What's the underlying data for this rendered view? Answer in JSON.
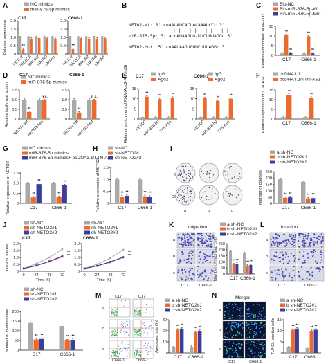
{
  "colors": {
    "gray": "#a9a9a9",
    "orange": "#ec6a2b",
    "blue": "#3a3f9a",
    "purple": "#7b6bbd",
    "micro_bg": "#d9dbea",
    "tunel_bg": "#0a1430",
    "flow_line": "#b33"
  },
  "panels": [
    {
      "id": "A",
      "letter": "A",
      "cell_labels": [
        "C17",
        "C666-1"
      ],
      "ylabel": "Relative expression",
      "legend": [
        "NC mimics",
        "miR-876-5p mimics"
      ],
      "subplots": [
        {
          "ylim": [
            0,
            2.0
          ],
          "yticks": [
            "0",
            "0.5",
            "1.0",
            "1.5",
            "2.0"
          ],
          "categories": [
            "NETO2",
            "HIGD2A",
            "ERLIN2",
            "MATR3",
            "LMAN1"
          ],
          "series": [
            {
              "name": "NC mimics",
              "values": [
                1.0,
                1.0,
                1.0,
                1.0,
                1.0
              ]
            },
            {
              "name": "miR-876-5p mimics",
              "values": [
                0.28,
                0.92,
                0.96,
                0.94,
                0.9
              ]
            }
          ],
          "stars": [
            "**",
            "",
            "",
            "",
            ""
          ]
        },
        {
          "ylim": [
            0,
            2.0
          ],
          "yticks": [
            "0",
            "0.5",
            "1.0",
            "1.5",
            "2.0"
          ],
          "categories": [
            "NETO2",
            "HIGD2A",
            "ERLIN2",
            "MATR3",
            "LMAN1"
          ],
          "series": [
            {
              "name": "NC mimics",
              "values": [
                1.0,
                1.0,
                1.0,
                1.0,
                1.0
              ]
            },
            {
              "name": "miR-876-5p mimics",
              "values": [
                0.3,
                0.95,
                0.93,
                0.92,
                0.94
              ]
            }
          ],
          "stars": [
            "**",
            "",
            "",
            "",
            ""
          ]
        }
      ]
    },
    {
      "id": "B",
      "letter": "B",
      "seq_wt": "NETO2-Wt: 5' cuAAUAUCACUACAAAUCCc 3'",
      "bars": "| | | | | |   | | | | |",
      "seq_mir": "miR-876-5p: 3' accAUAAGUG-UUCUUUAGGu 5'",
      "seq_mut": "NETO2-Mut: 5' cuAAUAAGUGUUCUUUAGGc 3'"
    },
    {
      "id": "C",
      "letter": "C",
      "ylabel": "Relative enrichment of NETO2",
      "legend": [
        "Bio-NC",
        "Bio-miR-876-5p-Wt",
        "Bio-miR-876-5p-Mut"
      ],
      "categories": [
        "C17",
        "C666-1"
      ],
      "ylim": [
        0,
        15
      ],
      "yticks": [
        "0",
        "5",
        "10",
        "15"
      ],
      "series": [
        {
          "name": "Bio-NC",
          "values": [
            1.0,
            1.0
          ]
        },
        {
          "name": "Bio-miR-876-5p-Wt",
          "values": [
            10.5,
            9.8
          ]
        },
        {
          "name": "Bio-miR-876-5p-Mut",
          "values": [
            1.1,
            1.0
          ]
        }
      ],
      "stars": [
        "**",
        "**"
      ]
    },
    {
      "id": "D",
      "letter": "D",
      "cell_labels": [
        "C17",
        "C666-1"
      ],
      "ylabel": "Relative luciferase activity",
      "legend": [
        "NC mimics",
        "miR-876-5p mimics"
      ],
      "subplots": [
        {
          "ylim": [
            0,
            1.5
          ],
          "yticks": [
            "0",
            "0.5",
            "1.0",
            "1.5"
          ],
          "categories": [
            "NETO2-Wt",
            "NETO2-Mut"
          ],
          "series": [
            {
              "name": "NC mimics",
              "values": [
                1.0,
                1.0
              ]
            },
            {
              "name": "miR-876-5p mimics",
              "values": [
                0.36,
                0.97
              ]
            }
          ],
          "stars": [
            "**",
            "n.s."
          ]
        },
        {
          "ylim": [
            0,
            1.5
          ],
          "yticks": [
            "0",
            "0.5",
            "1.0",
            "1.5"
          ],
          "categories": [
            "NETO2-Wt",
            "NETO2-Mut"
          ],
          "series": [
            {
              "name": "NC mimics",
              "values": [
                1.0,
                1.0
              ]
            },
            {
              "name": "miR-876-5p mimics",
              "values": [
                0.33,
                0.98
              ]
            }
          ],
          "stars": [
            "**",
            "n.s."
          ]
        }
      ]
    },
    {
      "id": "E",
      "letter": "E",
      "cell_labels": [
        "C17",
        "C666-1"
      ],
      "ylabel": "Relative enrichment of RNA (Ago2-RIP/IgG)",
      "legend": [
        "IgG",
        "Ago2"
      ],
      "subplots": [
        {
          "ylim": [
            0,
            15
          ],
          "yticks": [
            "0",
            "5",
            "10",
            "15"
          ],
          "categories": [
            "NETO2",
            "miR-876-5p",
            "TTN-AS1"
          ],
          "series": [
            {
              "name": "IgG",
              "values": [
                1.0,
                1.0,
                1.0
              ]
            },
            {
              "name": "Ago2",
              "values": [
                11.0,
                9.8,
                10.5
              ]
            }
          ],
          "stars": [
            "**",
            "**",
            "**"
          ]
        },
        {
          "ylim": [
            0,
            15
          ],
          "yticks": [
            "0",
            "5",
            "10",
            "15"
          ],
          "categories": [
            "NETO2",
            "miR-876-5p",
            "TTN-AS1"
          ],
          "series": [
            {
              "name": "IgG",
              "values": [
                1.0,
                1.0,
                1.0
              ]
            },
            {
              "name": "Ago2",
              "values": [
                10.2,
                9.0,
                10.0
              ]
            }
          ],
          "stars": [
            "**",
            "**",
            "**"
          ]
        }
      ]
    },
    {
      "id": "F",
      "letter": "F",
      "ylabel": "Relative expression of TTN-AS1",
      "legend": [
        "pcDNA3.1",
        "pcDNA3.1/TTN-AS1"
      ],
      "categories": [
        "C17",
        "C666-1"
      ],
      "ylim": [
        0,
        15
      ],
      "yticks": [
        "0",
        "5",
        "10",
        "15"
      ],
      "series": [
        {
          "name": "pcDNA3.1",
          "values": [
            1.0,
            1.0
          ]
        },
        {
          "name": "pcDNA3.1/TTN-AS1",
          "values": [
            12.5,
            11.0
          ]
        }
      ],
      "stars": [
        "**",
        "**"
      ]
    },
    {
      "id": "G",
      "letter": "G",
      "ylabel": "Relative expression of NETO2",
      "legend": [
        "NC mimics",
        "miR-876-5p mimics",
        "miR-876-5p mimics+ pcDNA3.1/TTN-AS1"
      ],
      "categories": [
        "C17",
        "C666-1"
      ],
      "ylim": [
        0,
        1.5
      ],
      "yticks": [
        "0",
        "0.5",
        "1.0",
        "1.5"
      ],
      "series": [
        {
          "name": "NC mimics",
          "values": [
            1.0,
            1.0
          ]
        },
        {
          "name": "miR-876-5p mimics",
          "values": [
            0.3,
            0.32
          ]
        },
        {
          "name": "miR-876-5p mimics+ pcDNA3.1/TTN-AS1",
          "values": [
            0.95,
            0.9
          ]
        }
      ],
      "stars": [
        "**",
        "**"
      ]
    },
    {
      "id": "H",
      "letter": "H",
      "ylabel": "Relative expression of NETO2",
      "legend": [
        "sh-NC",
        "sh-NETO2#1",
        "sh-NETO2#2"
      ],
      "categories": [
        "C17",
        "C666-1"
      ],
      "ylim": [
        0,
        1.5
      ],
      "yticks": [
        "0",
        "0.5",
        "1.0",
        "1.5"
      ],
      "series": [
        {
          "name": "sh-NC",
          "values": [
            1.0,
            1.0
          ]
        },
        {
          "name": "sh-NETO2#1",
          "values": [
            0.28,
            0.3
          ]
        },
        {
          "name": "sh-NETO2#2",
          "values": [
            0.32,
            0.28
          ]
        }
      ],
      "stars": [
        "**",
        "**"
      ]
    },
    {
      "id": "I",
      "letter": "I",
      "well_labels": [
        "C17",
        "C666-1"
      ],
      "lane_labels": [
        "a",
        "b",
        "c"
      ],
      "ylabel": "Number of colonies",
      "legend": [
        "a sh-NC",
        "b sh-NETO2#1",
        "c sh-NETO2#2"
      ],
      "categories": [
        "C17",
        "C666-1"
      ],
      "ylim": [
        0,
        250
      ],
      "yticks": [
        "0",
        "50",
        "100",
        "150",
        "200",
        "250"
      ],
      "series": [
        {
          "name": "a sh-NC",
          "values": [
            190,
            170
          ]
        },
        {
          "name": "b sh-NETO2#1",
          "values": [
            45,
            40
          ]
        },
        {
          "name": "c sh-NETO2#2",
          "values": [
            48,
            42
          ]
        }
      ],
      "stars": [
        "**",
        "**"
      ]
    },
    {
      "id": "J",
      "letter": "J",
      "ylabel": "OD 450 values",
      "xlabel": "Time (h)",
      "legend": [
        "sh-NC",
        "sh-NETO2#1",
        "sh-NETO2#2"
      ],
      "subplots": [
        {
          "title": "C17",
          "x": [
            0,
            24,
            48,
            72
          ],
          "ylim": [
            0,
            2.0
          ],
          "yticks": [
            "0",
            "0.5",
            "1.0",
            "1.5",
            "2.0"
          ],
          "xticks": [
            "0",
            "24",
            "48",
            "72"
          ],
          "series": [
            {
              "name": "sh-NC",
              "values": [
                0.2,
                0.55,
                1.0,
                1.6
              ]
            },
            {
              "name": "sh-NETO2#1",
              "values": [
                0.2,
                0.4,
                0.7,
                1.05
              ]
            },
            {
              "name": "sh-NETO2#2",
              "values": [
                0.2,
                0.42,
                0.72,
                1.1
              ]
            }
          ],
          "stars": [
            "**",
            "**"
          ]
        },
        {
          "title": "C666-1",
          "x": [
            0,
            24,
            48,
            72
          ],
          "ylim": [
            0,
            2.0
          ],
          "yticks": [
            "0",
            "0.5",
            "1.0",
            "1.5",
            "2.0"
          ],
          "xticks": [
            "0",
            "24",
            "48",
            "72"
          ],
          "series": [
            {
              "name": "sh-NC",
              "values": [
                0.2,
                0.5,
                0.95,
                1.55
              ]
            },
            {
              "name": "sh-NETO2#1",
              "values": [
                0.2,
                0.38,
                0.65,
                1.0
              ]
            },
            {
              "name": "sh-NETO2#2",
              "values": [
                0.2,
                0.4,
                0.68,
                1.02
              ]
            }
          ],
          "stars": [
            "**",
            "**"
          ]
        }
      ]
    },
    {
      "id": "J2",
      "ylabel": "Number of invaded cells",
      "legend": [
        "sh-NC",
        "sh-NETO2#1",
        "sh-NETO2#2"
      ],
      "categories": [
        "C17",
        "C666-1"
      ],
      "ylim": [
        0,
        200
      ],
      "yticks": [
        "0",
        "50",
        "100",
        "150",
        "200"
      ],
      "series": [
        {
          "name": "sh-NC",
          "values": [
            140,
            125
          ]
        },
        {
          "name": "sh-NETO2#1",
          "values": [
            55,
            50
          ]
        },
        {
          "name": "sh-NETO2#2",
          "values": [
            58,
            52
          ]
        }
      ],
      "stars": [
        "**",
        "**"
      ]
    },
    {
      "id": "K",
      "letter": "K",
      "title": "migration",
      "lane_labels": [
        "a",
        "b",
        "c"
      ],
      "cell_labels": [
        "C17",
        "C666-1"
      ],
      "ylabel": "Number of migrated cells",
      "legend": [
        "a sh-NC",
        "b sh-NETO2#1",
        "c sh-NETO2#2"
      ],
      "categories": [
        "C17",
        "C666-1"
      ],
      "ylim": [
        0,
        250
      ],
      "yticks": [
        "0",
        "50",
        "100",
        "150",
        "200",
        "250"
      ],
      "series": [
        {
          "name": "a sh-NC",
          "values": [
            190,
            170
          ]
        },
        {
          "name": "b sh-NETO2#1",
          "values": [
            80,
            70
          ]
        },
        {
          "name": "c sh-NETO2#2",
          "values": [
            85,
            75
          ]
        }
      ],
      "stars": [
        "**",
        "**"
      ]
    },
    {
      "id": "L",
      "letter": "L",
      "title": "invasion",
      "lane_labels": [
        "a",
        "b",
        "c"
      ],
      "cell_labels": [
        "C17",
        "C666-1"
      ]
    },
    {
      "id": "M",
      "letter": "M",
      "lane_labels": [
        "a",
        "b",
        "c"
      ],
      "cell_labels": [
        "C17",
        "C666-1"
      ],
      "ylabel": "Apoptosis rate (%)",
      "legend": [
        "a sh-NC",
        "b sh-NETO2#1",
        "c sh-NETO2#2"
      ],
      "categories": [
        "C17",
        "C666-1"
      ],
      "ylim": [
        0,
        30
      ],
      "yticks": [
        "0",
        "10",
        "20",
        "30"
      ],
      "series": [
        {
          "name": "a sh-NC",
          "values": [
            5,
            5.5
          ]
        },
        {
          "name": "b sh-NETO2#1",
          "values": [
            21,
            19
          ]
        },
        {
          "name": "c sh-NETO2#2",
          "values": [
            22,
            20
          ]
        }
      ],
      "stars": [
        "**",
        "**"
      ]
    },
    {
      "id": "N",
      "letter": "N",
      "title": "Merged",
      "lane_labels": [
        "a",
        "b",
        "c"
      ],
      "cell_labels": [
        "C17",
        "C666-1"
      ],
      "ylabel": "TUNEL positive cells",
      "legend": [
        "a sh-NC",
        "b sh-NETO2#1",
        "c sh-NETO2#2"
      ],
      "categories": [
        "C17",
        "C666-1"
      ],
      "ylim": [
        0,
        15
      ],
      "yticks": [
        "0",
        "5",
        "10",
        "15"
      ],
      "series": [
        {
          "name": "a sh-NC",
          "values": [
            2.5,
            2.2
          ]
        },
        {
          "name": "b sh-NETO2#1",
          "values": [
            10.5,
            10.0
          ]
        },
        {
          "name": "c sh-NETO2#2",
          "values": [
            11.0,
            10.5
          ]
        }
      ],
      "stars": [
        "**",
        "**"
      ]
    }
  ]
}
